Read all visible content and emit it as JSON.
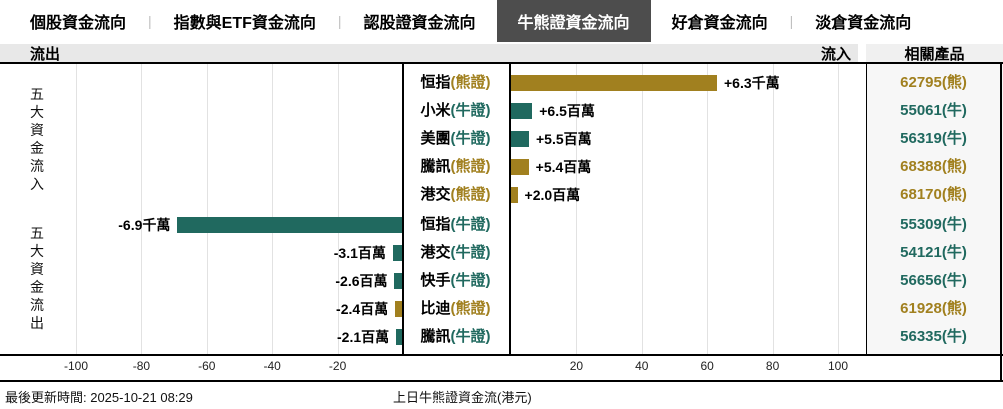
{
  "tabs": [
    {
      "label": "個股資金流向",
      "active": false
    },
    {
      "label": "指數與ETF資金流向",
      "active": false
    },
    {
      "label": "認股證資金流向",
      "active": false
    },
    {
      "label": "牛熊證資金流向",
      "active": true
    },
    {
      "label": "好倉資金流向",
      "active": false
    },
    {
      "label": "淡倉資金流向",
      "active": false
    }
  ],
  "tab_separator": "|",
  "header": {
    "outflow_label": "流出",
    "inflow_label": "流入",
    "related_products_label": "相關產品"
  },
  "group_labels": {
    "inflow": "五大資金流入",
    "outflow": "五大資金流出"
  },
  "footer": {
    "last_update": "最後更新時間: 2025-10-21 08:29",
    "axis_title": "上日牛熊證資金流(港元)"
  },
  "colors": {
    "bull": "#20695F",
    "bear": "#A1801F",
    "active_tab_bg": "#4d4d4d"
  },
  "chart_data": {
    "type": "bar",
    "orientation": "horizontal",
    "title": "上日牛熊證資金流(港元)",
    "unit_per_axis_step": "百萬港元 (values in millions HKD)",
    "xticks": [
      -100,
      -80,
      -60,
      -40,
      -20,
      20,
      40,
      60,
      80,
      100
    ],
    "xlim": [
      -123,
      110
    ],
    "grid": "vertical-only",
    "groups": [
      "五大資金流入",
      "五大資金流出"
    ],
    "rows": [
      {
        "group": "inflow",
        "name": "恒指",
        "suffix": "(熊證)",
        "side": "bear",
        "value": 63,
        "value_label": "+6.3千萬",
        "product": "62795(熊)"
      },
      {
        "group": "inflow",
        "name": "小米",
        "suffix": "(牛證)",
        "side": "bull",
        "value": 6.5,
        "value_label": "+6.5百萬",
        "product": "55061(牛)"
      },
      {
        "group": "inflow",
        "name": "美團",
        "suffix": "(牛證)",
        "side": "bull",
        "value": 5.5,
        "value_label": "+5.5百萬",
        "product": "56319(牛)"
      },
      {
        "group": "inflow",
        "name": "騰訊",
        "suffix": "(熊證)",
        "side": "bear",
        "value": 5.4,
        "value_label": "+5.4百萬",
        "product": "68388(熊)"
      },
      {
        "group": "inflow",
        "name": "港交",
        "suffix": "(熊證)",
        "side": "bear",
        "value": 2.0,
        "value_label": "+2.0百萬",
        "product": "68170(熊)"
      },
      {
        "group": "outflow",
        "name": "恒指",
        "suffix": "(牛證)",
        "side": "bull",
        "value": -69,
        "value_label": "-6.9千萬",
        "product": "55309(牛)"
      },
      {
        "group": "outflow",
        "name": "港交",
        "suffix": "(牛證)",
        "side": "bull",
        "value": -3.1,
        "value_label": "-3.1百萬",
        "product": "54121(牛)"
      },
      {
        "group": "outflow",
        "name": "快手",
        "suffix": "(牛證)",
        "side": "bull",
        "value": -2.6,
        "value_label": "-2.6百萬",
        "product": "56656(牛)"
      },
      {
        "group": "outflow",
        "name": "比迪",
        "suffix": "(熊證)",
        "side": "bear",
        "value": -2.4,
        "value_label": "-2.4百萬",
        "product": "61928(熊)"
      },
      {
        "group": "outflow",
        "name": "騰訊",
        "suffix": "(牛證)",
        "side": "bull",
        "value": -2.1,
        "value_label": "-2.1百萬",
        "product": "56335(牛)"
      }
    ]
  }
}
